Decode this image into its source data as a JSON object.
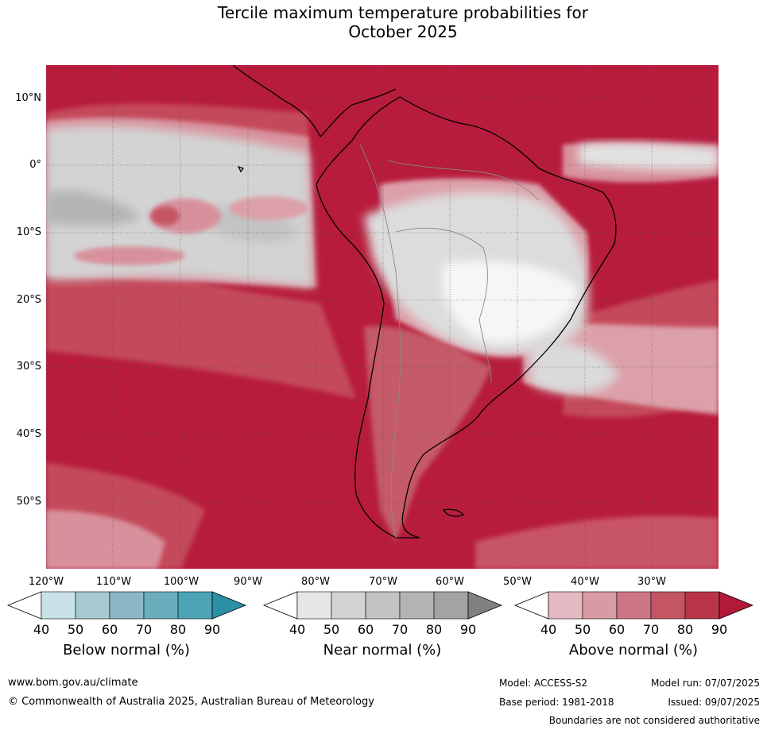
{
  "title": {
    "line1": "Tercile maximum temperature probabilities for",
    "line2": "October 2025"
  },
  "map": {
    "lat_labels": [
      "10°N",
      "0°",
      "10°S",
      "20°S",
      "30°S",
      "40°S",
      "50°S"
    ],
    "lon_labels": [
      "120°W",
      "110°W",
      "100°W",
      "90°W",
      "80°W",
      "70°W",
      "60°W",
      "50°W",
      "40°W",
      "30°W"
    ]
  },
  "legends": [
    {
      "label": "Below normal (%)",
      "ticks": [
        "40",
        "50",
        "60",
        "70",
        "80",
        "90"
      ],
      "colors": [
        "#ffffff",
        "#c9e1e8",
        "#a7c9d0",
        "#8ab7c3",
        "#6aadbc",
        "#4ca4b5",
        "#2b8fa6"
      ]
    },
    {
      "label": "Near normal (%)",
      "ticks": [
        "40",
        "50",
        "60",
        "70",
        "80",
        "90"
      ],
      "colors": [
        "#ffffff",
        "#e6e6e6",
        "#d3d3d3",
        "#c3c3c3",
        "#b4b4b4",
        "#a3a3a3",
        "#808080"
      ]
    },
    {
      "label": "Above normal (%)",
      "ticks": [
        "40",
        "50",
        "60",
        "70",
        "80",
        "90"
      ],
      "colors": [
        "#ffffff",
        "#e5b9c1",
        "#d89aa4",
        "#cd7683",
        "#c45664",
        "#b93349",
        "#b11a38"
      ]
    }
  ],
  "footer": {
    "website": "www.bom.gov.au/climate",
    "copyright": "© Commonwealth of Australia 2025, Australian Bureau of Meteorology",
    "model": "Model: ACCESS-S2",
    "model_run": "Model run: 07/07/2025",
    "base_period": "Base period: 1981-2018",
    "issued": "Issued: 09/07/2025",
    "disclaimer": "Boundaries are not considered authoritative"
  }
}
